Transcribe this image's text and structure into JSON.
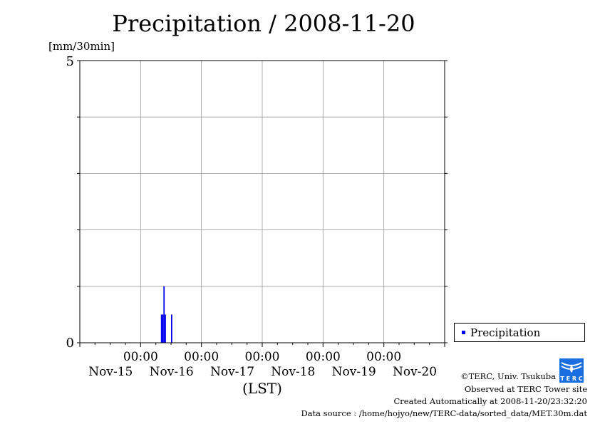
{
  "chart_data": {
    "type": "bar",
    "title": "Precipitation / 2008-11-20",
    "ylabel": "[mm/30min]",
    "xlabel": "(LST)",
    "ylim": [
      0,
      5
    ],
    "y_tick_labels": [
      "0",
      "5"
    ],
    "y_grid": [
      1,
      2,
      3,
      4
    ],
    "x_range_hours": [
      0,
      144
    ],
    "x_tick_labels": [
      {
        "time": "00:00",
        "date": "Nov-15",
        "hour": 24
      },
      {
        "time": "00:00",
        "date": "Nov-16",
        "hour": 48
      },
      {
        "time": "00:00",
        "date": "Nov-17",
        "hour": 72
      },
      {
        "time": "00:00",
        "date": "Nov-18",
        "hour": 96
      },
      {
        "time": "00:00",
        "date": "Nov-19",
        "hour": 120
      },
      {
        "time": "",
        "date": "Nov-20",
        "hour": 144
      }
    ],
    "series": [
      {
        "name": "Precipitation",
        "color": "#0000ee",
        "points": [
          {
            "hour": 32.0,
            "value": 0.5
          },
          {
            "hour": 32.5,
            "value": 0.5
          },
          {
            "hour": 33.0,
            "value": 1.0
          },
          {
            "hour": 33.5,
            "value": 0.5
          },
          {
            "hour": 36.0,
            "value": 0.5
          }
        ]
      }
    ],
    "grid": true,
    "legend": "right"
  },
  "footer": {
    "copyright": "©TERC, Univ. Tsukuba",
    "observed": "Observed at TERC Tower site",
    "created": "Created Automatically at 2008-11-20/23:32:20",
    "source": "Data source : /home/hojyo/new/TERC-data/sorted_data/MET.30m.dat",
    "logo_text": "TERC"
  }
}
